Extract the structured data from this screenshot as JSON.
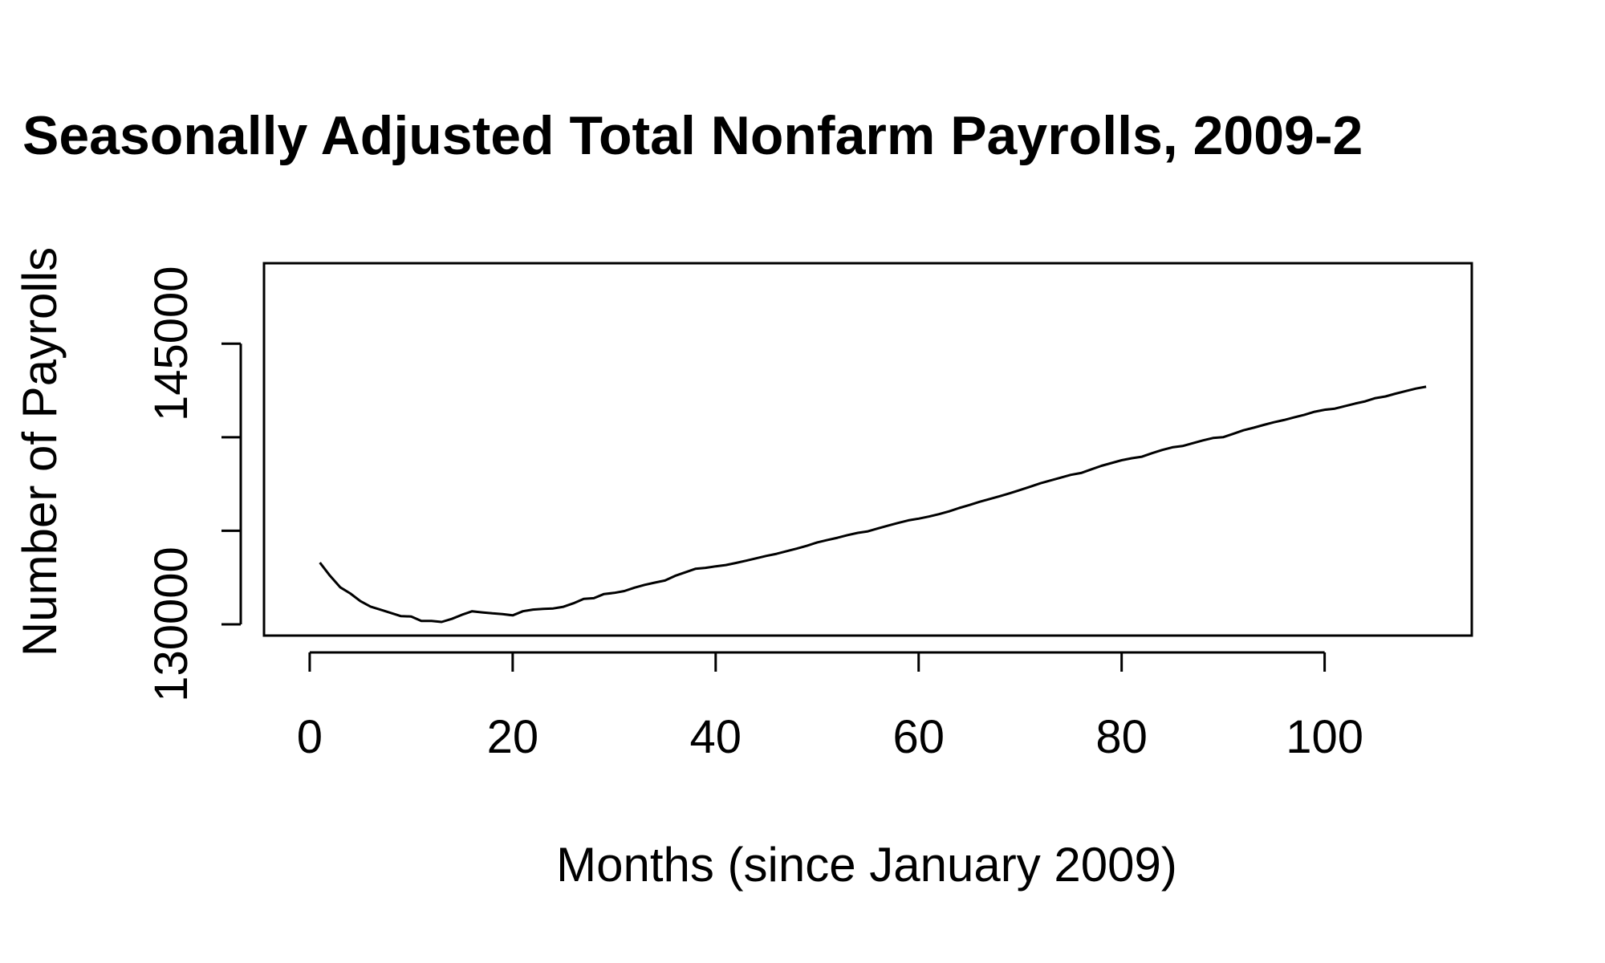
{
  "chart_data": {
    "type": "line",
    "title": "Seasonally Adjusted Total Nonfarm Payrolls, 2009-2",
    "xlabel": "Months (since January 2009)",
    "ylabel": "Number of Payrolls",
    "xlim": [
      -4.5,
      114.5
    ],
    "ylim": [
      129400,
      149300
    ],
    "xticks": [
      0,
      20,
      40,
      60,
      80,
      100
    ],
    "xtick_labels": [
      "0",
      "20",
      "40",
      "60",
      "80",
      "100"
    ],
    "yticks": [
      130000,
      135000,
      140000,
      145000
    ],
    "ytick_labels": [
      "130000",
      "",
      "",
      "145000"
    ],
    "grid": false,
    "legend": "none",
    "series": [
      {
        "line_color": "#000000",
        "x": [
          1,
          2,
          3,
          4,
          5,
          6,
          7,
          8,
          9,
          10,
          11,
          12,
          13,
          14,
          15,
          16,
          17,
          18,
          19,
          20,
          21,
          22,
          23,
          24,
          25,
          26,
          27,
          28,
          29,
          30,
          31,
          32,
          33,
          34,
          35,
          36,
          37,
          38,
          39,
          40,
          41,
          42,
          43,
          44,
          45,
          46,
          47,
          48,
          49,
          50,
          51,
          52,
          53,
          54,
          55,
          56,
          57,
          58,
          59,
          60,
          61,
          62,
          63,
          64,
          65,
          66,
          67,
          68,
          69,
          70,
          71,
          72,
          73,
          74,
          75,
          76,
          77,
          78,
          79,
          80,
          81,
          82,
          83,
          84,
          85,
          86,
          87,
          88,
          89,
          90,
          91,
          92,
          93,
          94,
          95,
          96,
          97,
          98,
          99,
          100,
          101,
          102,
          103,
          104,
          105,
          106,
          107,
          108,
          109,
          110
        ],
        "y": [
          133300,
          132600,
          131980,
          131650,
          131240,
          130950,
          130780,
          130610,
          130440,
          130420,
          130180,
          130180,
          130130,
          130290,
          130510,
          130700,
          130640,
          130590,
          130550,
          130480,
          130700,
          130790,
          130830,
          130850,
          130940,
          131130,
          131360,
          131400,
          131620,
          131680,
          131780,
          131960,
          132110,
          132230,
          132340,
          132590,
          132780,
          132970,
          133020,
          133100,
          133170,
          133280,
          133400,
          133530,
          133660,
          133770,
          133910,
          134050,
          134200,
          134380,
          134510,
          134630,
          134770,
          134890,
          134970,
          135130,
          135280,
          135420,
          135560,
          135650,
          135760,
          135890,
          136040,
          136220,
          136380,
          136550,
          136700,
          136850,
          137010,
          137180,
          137360,
          137540,
          137690,
          137840,
          137990,
          138090,
          138280,
          138470,
          138620,
          138770,
          138880,
          138960,
          139150,
          139320,
          139460,
          139530,
          139680,
          139830,
          139960,
          140000,
          140180,
          140370,
          140510,
          140660,
          140800,
          140920,
          141060,
          141200,
          141360,
          141470,
          141530,
          141660,
          141800,
          141920,
          142090,
          142180,
          142330,
          142470,
          142600,
          142700
        ]
      }
    ]
  }
}
